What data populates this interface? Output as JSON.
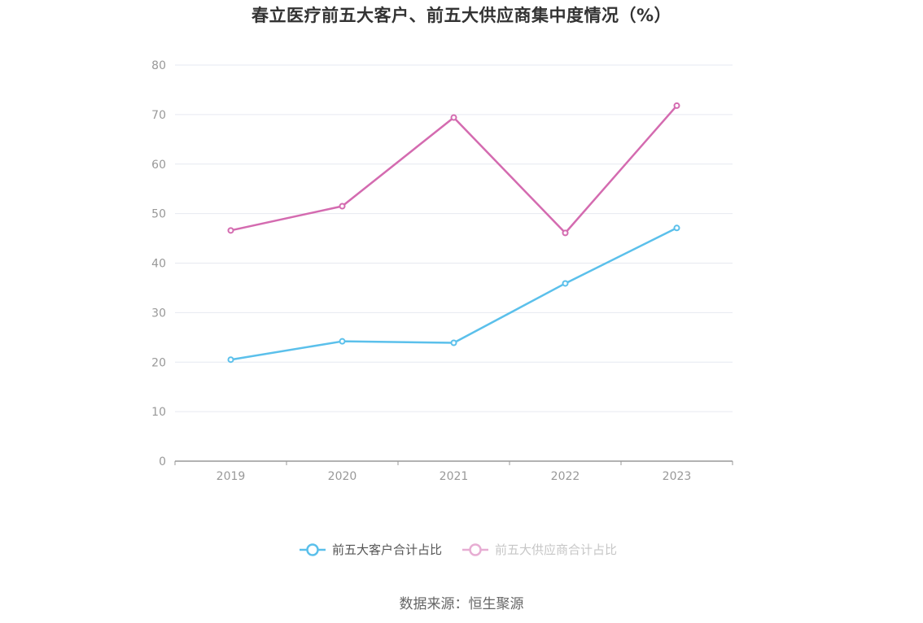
{
  "title": "春立医疗前五大客户、前五大供应商集中度情况（%）",
  "source": "数据来源：恒生聚源",
  "colors": {
    "customers": "#5bc0eb",
    "suppliers": "#d46bb0",
    "grid": "#e6e9f0",
    "axis": "#999999",
    "tick_text": "#999999",
    "legend_inactive_text": "#999999",
    "legend_active_text": "#555555"
  },
  "chart_data": {
    "type": "line",
    "title": "春立医疗前五大客户、前五大供应商集中度情况（%）",
    "xlabel": "",
    "ylabel": "",
    "categories": [
      "2019",
      "2020",
      "2021",
      "2022",
      "2023"
    ],
    "ylim": [
      0,
      80
    ],
    "yticks": [
      0,
      10,
      20,
      30,
      40,
      50,
      60,
      70,
      80
    ],
    "grid": true,
    "legend_position": "bottom-center",
    "series": [
      {
        "name": "前五大客户合计占比",
        "values": [
          20.5,
          24.2,
          23.9,
          35.9,
          47.1
        ],
        "color": "#5bc0eb"
      },
      {
        "name": "前五大供应商合计占比",
        "values": [
          46.6,
          51.5,
          69.4,
          46.1,
          71.8
        ],
        "color": "#d46bb0"
      }
    ]
  }
}
